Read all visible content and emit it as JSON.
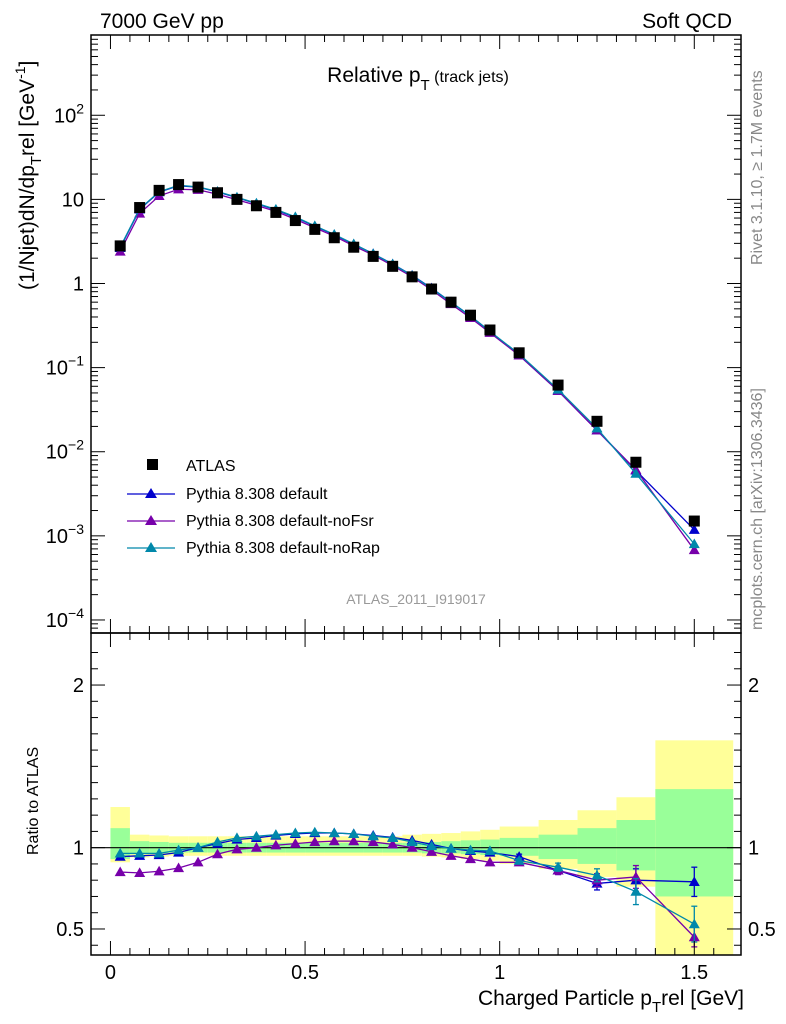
{
  "header": {
    "left": "7000 GeV pp",
    "right": "Soft QCD"
  },
  "side_labels": {
    "rivet": "Rivet 3.1.10, ≥ 1.7M events",
    "mcplots": "mcplots.cern.ch [arXiv:1306.3436]"
  },
  "watermark": "ATLAS_2011_I919017",
  "colors": {
    "data": "#000000",
    "default": "#0000cc",
    "noFsr": "#7700aa",
    "noRap": "#0088aa",
    "band_yellow": "#ffff99",
    "band_green": "#99ff99"
  },
  "chart_data": [
    {
      "type": "line",
      "title_main": "Relative p",
      "title_sub": "T",
      "title_suffix": " (track jets)",
      "ylabel": "(1/Njet)dN/dp",
      "ylabel_sub": "T",
      "ylabel_rest": "rel [GeV",
      "ylabel_sup": "-1",
      "ylabel_end": "]",
      "yscale": "log",
      "ylim": [
        7e-05,
        900
      ],
      "xlim": [
        -0.05,
        1.62
      ],
      "yticks": [
        {
          "v": 0.0001,
          "base": "10",
          "exp": "−4"
        },
        {
          "v": 0.001,
          "base": "10",
          "exp": "−3"
        },
        {
          "v": 0.01,
          "base": "10",
          "exp": "−2"
        },
        {
          "v": 0.1,
          "base": "10",
          "exp": "−1"
        },
        {
          "v": 1,
          "base": "1",
          "exp": ""
        },
        {
          "v": 10,
          "base": "10",
          "exp": ""
        },
        {
          "v": 100,
          "base": "10",
          "exp": "2"
        }
      ],
      "x": [
        0.025,
        0.075,
        0.125,
        0.175,
        0.225,
        0.275,
        0.325,
        0.375,
        0.425,
        0.475,
        0.525,
        0.575,
        0.625,
        0.675,
        0.725,
        0.775,
        0.825,
        0.875,
        0.925,
        0.975,
        1.05,
        1.15,
        1.25,
        1.35,
        1.5
      ],
      "data_series": {
        "name": "ATLAS",
        "values": [
          2.8,
          8.0,
          12.8,
          15.0,
          14.0,
          12.0,
          10.0,
          8.4,
          7.0,
          5.6,
          4.4,
          3.5,
          2.7,
          2.1,
          1.6,
          1.2,
          0.86,
          0.6,
          0.42,
          0.28,
          0.15,
          0.062,
          0.023,
          0.0075,
          0.0015
        ]
      },
      "series": [
        {
          "name": "Pythia 8.308 default",
          "values": [
            2.65,
            7.6,
            12.2,
            14.5,
            14.0,
            12.3,
            10.5,
            8.9,
            7.5,
            6.1,
            4.8,
            3.8,
            2.93,
            2.26,
            1.7,
            1.25,
            0.88,
            0.6,
            0.41,
            0.27,
            0.14,
            0.053,
            0.018,
            0.006,
            0.00118
          ]
        },
        {
          "name": "Pythia 8.308 default-noFsr",
          "values": [
            2.4,
            6.8,
            11.0,
            13.2,
            13.0,
            11.5,
            9.9,
            8.5,
            7.2,
            5.8,
            4.6,
            3.65,
            2.8,
            2.18,
            1.63,
            1.2,
            0.84,
            0.57,
            0.39,
            0.26,
            0.14,
            0.053,
            0.018,
            0.0061,
            0.00068
          ]
        },
        {
          "name": "Pythia 8.308 default-noRap",
          "values": [
            2.7,
            7.7,
            12.3,
            14.7,
            14.1,
            12.4,
            10.6,
            9.0,
            7.6,
            6.2,
            4.85,
            3.83,
            2.95,
            2.25,
            1.7,
            1.24,
            0.87,
            0.6,
            0.41,
            0.27,
            0.145,
            0.055,
            0.019,
            0.0055,
            0.0008
          ]
        }
      ]
    },
    {
      "type": "line",
      "ylabel": "Ratio to ATLAS",
      "xlabel": "Charged Particle p",
      "xlabel_sub": "T",
      "xlabel_rest": "rel [GeV]",
      "ylim": [
        0.34,
        2.32
      ],
      "xlim": [
        -0.05,
        1.62
      ],
      "yticks": [
        0.5,
        1,
        2
      ],
      "xticks": [
        0,
        0.5,
        1,
        1.5
      ],
      "x": [
        0.025,
        0.075,
        0.125,
        0.175,
        0.225,
        0.275,
        0.325,
        0.375,
        0.425,
        0.475,
        0.525,
        0.575,
        0.625,
        0.675,
        0.725,
        0.775,
        0.825,
        0.875,
        0.925,
        0.975,
        1.05,
        1.15,
        1.25,
        1.35,
        1.5
      ],
      "bands": [
        {
          "x0": 0.0,
          "x1": 0.05,
          "g": [
            0.93,
            1.12
          ],
          "y": [
            0.91,
            1.25
          ]
        },
        {
          "x0": 0.05,
          "x1": 0.1,
          "g": [
            0.96,
            1.04
          ],
          "y": [
            0.94,
            1.08
          ]
        },
        {
          "x0": 0.1,
          "x1": 0.15,
          "g": [
            0.965,
            1.035
          ],
          "y": [
            0.945,
            1.075
          ]
        },
        {
          "x0": 0.15,
          "x1": 0.2,
          "g": [
            0.97,
            1.03
          ],
          "y": [
            0.95,
            1.07
          ]
        },
        {
          "x0": 0.2,
          "x1": 0.25,
          "g": [
            0.97,
            1.03
          ],
          "y": [
            0.95,
            1.07
          ]
        },
        {
          "x0": 0.25,
          "x1": 0.3,
          "g": [
            0.97,
            1.03
          ],
          "y": [
            0.95,
            1.07
          ]
        },
        {
          "x0": 0.3,
          "x1": 0.35,
          "g": [
            0.97,
            1.03
          ],
          "y": [
            0.95,
            1.07
          ]
        },
        {
          "x0": 0.35,
          "x1": 0.4,
          "g": [
            0.97,
            1.03
          ],
          "y": [
            0.95,
            1.07
          ]
        },
        {
          "x0": 0.4,
          "x1": 0.45,
          "g": [
            0.97,
            1.03
          ],
          "y": [
            0.95,
            1.07
          ]
        },
        {
          "x0": 0.45,
          "x1": 0.5,
          "g": [
            0.97,
            1.03
          ],
          "y": [
            0.95,
            1.07
          ]
        },
        {
          "x0": 0.5,
          "x1": 0.55,
          "g": [
            0.97,
            1.03
          ],
          "y": [
            0.95,
            1.07
          ]
        },
        {
          "x0": 0.55,
          "x1": 0.6,
          "g": [
            0.97,
            1.03
          ],
          "y": [
            0.95,
            1.07
          ]
        },
        {
          "x0": 0.6,
          "x1": 0.65,
          "g": [
            0.97,
            1.03
          ],
          "y": [
            0.95,
            1.07
          ]
        },
        {
          "x0": 0.65,
          "x1": 0.7,
          "g": [
            0.97,
            1.03
          ],
          "y": [
            0.95,
            1.07
          ]
        },
        {
          "x0": 0.7,
          "x1": 0.75,
          "g": [
            0.97,
            1.03
          ],
          "y": [
            0.95,
            1.07
          ]
        },
        {
          "x0": 0.75,
          "x1": 0.8,
          "g": [
            0.97,
            1.03
          ],
          "y": [
            0.95,
            1.08
          ]
        },
        {
          "x0": 0.8,
          "x1": 0.85,
          "g": [
            0.965,
            1.035
          ],
          "y": [
            0.945,
            1.085
          ]
        },
        {
          "x0": 0.85,
          "x1": 0.9,
          "g": [
            0.965,
            1.04
          ],
          "y": [
            0.94,
            1.09
          ]
        },
        {
          "x0": 0.9,
          "x1": 0.95,
          "g": [
            0.96,
            1.045
          ],
          "y": [
            0.93,
            1.1
          ]
        },
        {
          "x0": 0.95,
          "x1": 1.0,
          "g": [
            0.955,
            1.05
          ],
          "y": [
            0.92,
            1.11
          ]
        },
        {
          "x0": 1.0,
          "x1": 1.1,
          "g": [
            0.95,
            1.06
          ],
          "y": [
            0.9,
            1.13
          ]
        },
        {
          "x0": 1.1,
          "x1": 1.2,
          "g": [
            0.93,
            1.08
          ],
          "y": [
            0.87,
            1.17
          ]
        },
        {
          "x0": 1.2,
          "x1": 1.3,
          "g": [
            0.9,
            1.12
          ],
          "y": [
            0.82,
            1.23
          ]
        },
        {
          "x0": 1.3,
          "x1": 1.4,
          "g": [
            0.86,
            1.17
          ],
          "y": [
            0.76,
            1.31
          ]
        },
        {
          "x0": 1.4,
          "x1": 1.6,
          "g": [
            0.7,
            1.36
          ],
          "y": [
            0.3,
            1.66
          ]
        }
      ],
      "series": [
        {
          "name": "Pythia 8.308 default",
          "values": [
            0.945,
            0.95,
            0.955,
            0.97,
            1.0,
            1.025,
            1.05,
            1.06,
            1.075,
            1.085,
            1.09,
            1.09,
            1.085,
            1.075,
            1.063,
            1.045,
            1.02,
            0.995,
            0.98,
            0.97,
            0.945,
            0.86,
            0.78,
            0.8,
            0.79
          ],
          "err": [
            0,
            0,
            0,
            0,
            0,
            0,
            0,
            0,
            0,
            0,
            0,
            0,
            0,
            0,
            0,
            0,
            0,
            0,
            0,
            0,
            0.015,
            0.025,
            0.04,
            0.07,
            0.09
          ]
        },
        {
          "name": "Pythia 8.308 default-noFsr",
          "values": [
            0.85,
            0.845,
            0.855,
            0.875,
            0.91,
            0.96,
            0.99,
            1.0,
            1.015,
            1.025,
            1.035,
            1.04,
            1.04,
            1.035,
            1.02,
            1.0,
            0.975,
            0.95,
            0.93,
            0.91,
            0.91,
            0.86,
            0.8,
            0.82,
            0.45
          ],
          "err": [
            0,
            0,
            0,
            0,
            0,
            0,
            0,
            0,
            0,
            0,
            0,
            0,
            0,
            0,
            0,
            0,
            0,
            0,
            0,
            0,
            0.015,
            0.025,
            0.04,
            0.07,
            0.06
          ]
        },
        {
          "name": "Pythia 8.308 default-noRap",
          "values": [
            0.965,
            0.965,
            0.965,
            0.985,
            1.0,
            1.035,
            1.06,
            1.07,
            1.08,
            1.09,
            1.095,
            1.09,
            1.085,
            1.07,
            1.06,
            1.035,
            1.01,
            0.995,
            0.985,
            0.98,
            0.92,
            0.88,
            0.83,
            0.73,
            0.53
          ],
          "err": [
            0,
            0,
            0,
            0,
            0,
            0,
            0,
            0,
            0,
            0,
            0,
            0,
            0,
            0,
            0,
            0,
            0,
            0,
            0,
            0,
            0.015,
            0.025,
            0.04,
            0.08,
            0.11
          ]
        }
      ]
    }
  ]
}
